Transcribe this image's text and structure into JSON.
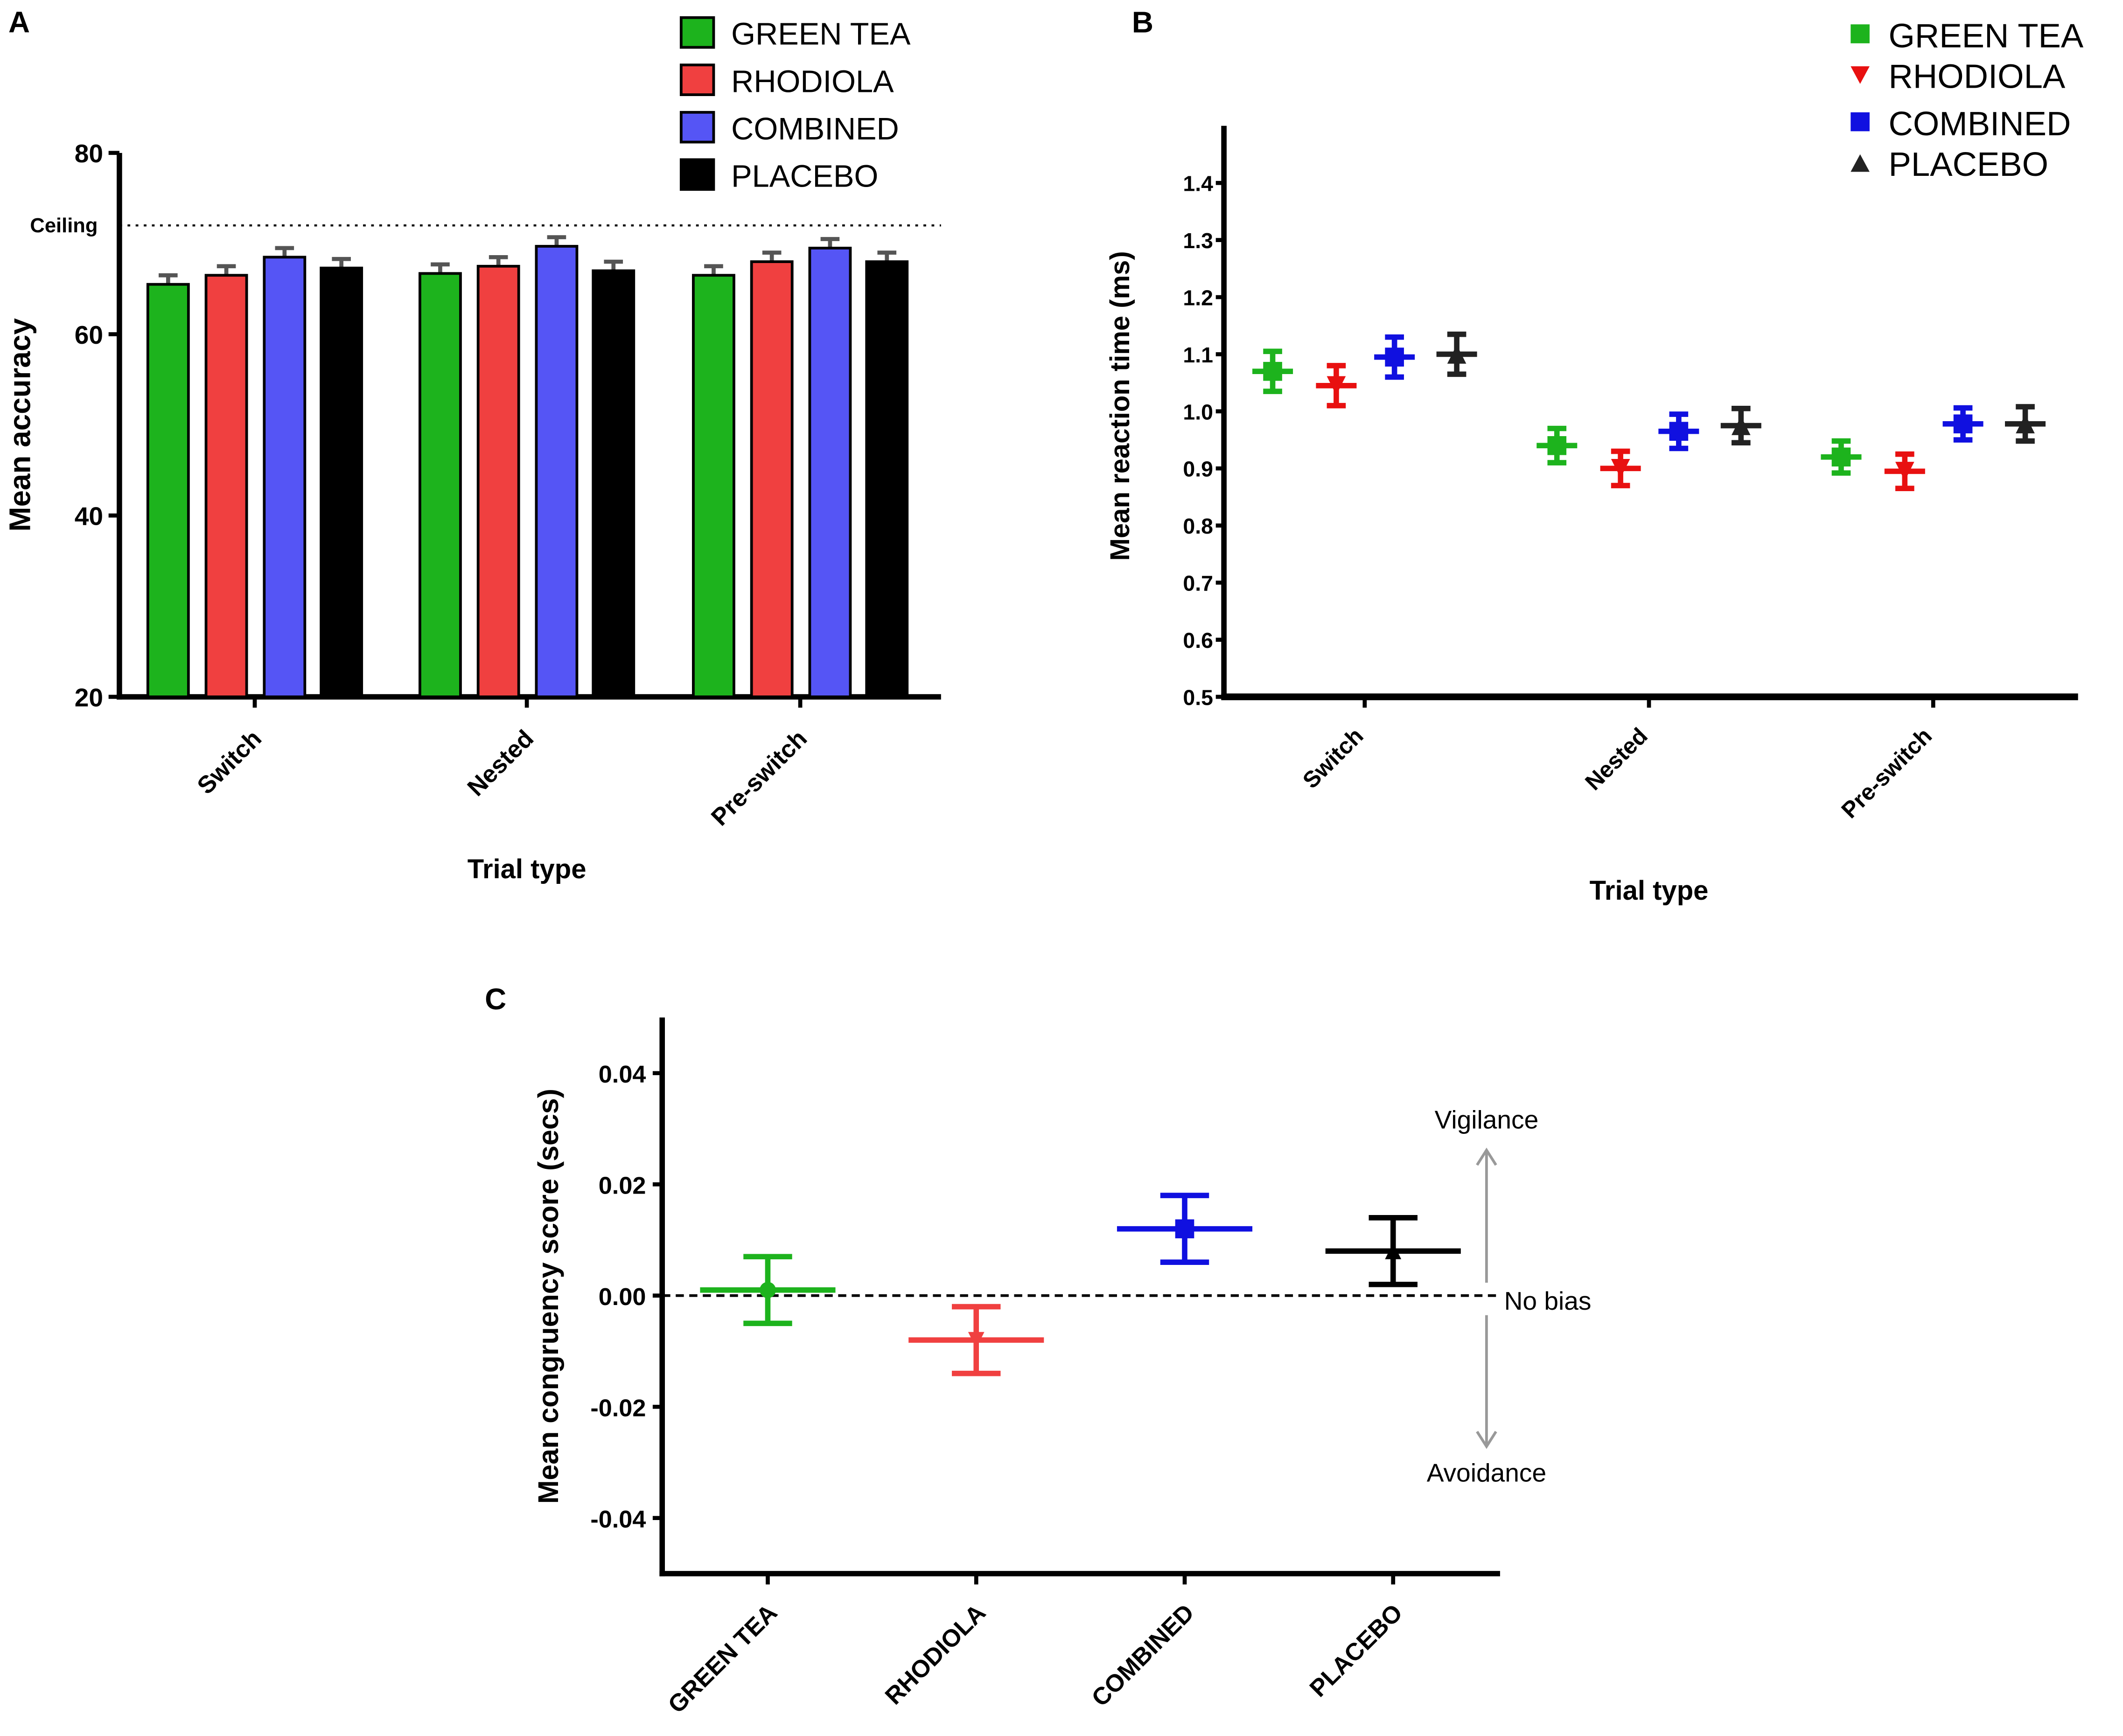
{
  "colors": {
    "green": "#1db31d",
    "red": "#f04040",
    "blue": "#5555f5",
    "black": "#000000",
    "red_b": "#e81010",
    "blue_b": "#1010e0",
    "black_b": "#222222"
  },
  "chart_data": [
    {
      "panel": "A",
      "type": "bar",
      "title": "",
      "xlabel": "Trial type",
      "ylabel": "Mean accuracy",
      "ylim": [
        20,
        80
      ],
      "yticks": [
        "20",
        "40",
        "60",
        "80"
      ],
      "categories": [
        "Switch",
        "Nested",
        "Pre-switch"
      ],
      "reference_line": {
        "label": "Ceiling",
        "value": 72
      },
      "legend": "top-right",
      "series": [
        {
          "name": "GREEN TEA",
          "color_key": "green",
          "values": [
            65.5,
            66.7,
            66.5
          ],
          "errors": [
            1.0,
            1.0,
            1.0
          ]
        },
        {
          "name": "RHODIOLA",
          "color_key": "red",
          "values": [
            66.5,
            67.5,
            68.0
          ],
          "errors": [
            1.0,
            1.0,
            1.0
          ]
        },
        {
          "name": "COMBINED",
          "color_key": "blue",
          "values": [
            68.5,
            69.7,
            69.5
          ],
          "errors": [
            1.0,
            1.0,
            1.0
          ]
        },
        {
          "name": "PLACEBO",
          "color_key": "black",
          "values": [
            67.3,
            67.0,
            68.0
          ],
          "errors": [
            1.0,
            1.0,
            1.0
          ]
        }
      ]
    },
    {
      "panel": "B",
      "type": "scatter",
      "xlabel": "Trial type",
      "ylabel": "Mean reaction time (ms)",
      "ylim": [
        0.5,
        1.5
      ],
      "yticks": [
        "0.5",
        "0.6",
        "0.7",
        "0.8",
        "0.9",
        "1.0",
        "1.1",
        "1.2",
        "1.3",
        "1.4"
      ],
      "categories": [
        "Switch",
        "Nested",
        "Pre-switch"
      ],
      "legend": "top-right",
      "series": [
        {
          "name": "GREEN TEA",
          "marker": "square",
          "color_key": "green",
          "values": [
            1.07,
            0.94,
            0.92
          ],
          "errors": [
            0.035,
            0.03,
            0.028
          ]
        },
        {
          "name": "RHODIOLA",
          "marker": "triangle-down",
          "color_key": "red_b",
          "values": [
            1.045,
            0.9,
            0.895
          ],
          "errors": [
            0.035,
            0.03,
            0.03
          ]
        },
        {
          "name": "COMBINED",
          "marker": "square",
          "color_key": "blue_b",
          "values": [
            1.095,
            0.965,
            0.978
          ],
          "errors": [
            0.035,
            0.03,
            0.028
          ]
        },
        {
          "name": "PLACEBO",
          "marker": "triangle-up",
          "color_key": "black_b",
          "values": [
            1.1,
            0.975,
            0.978
          ],
          "errors": [
            0.035,
            0.03,
            0.03
          ]
        }
      ]
    },
    {
      "panel": "C",
      "type": "scatter",
      "xlabel": "",
      "ylabel": "Mean congruency score (secs)",
      "ylim": [
        -0.05,
        0.05
      ],
      "yticks": [
        "-0.04",
        "-0.02",
        "0.00",
        "0.02",
        "0.04"
      ],
      "categories": [
        "GREEN TEA",
        "RHODIOLA",
        "COMBINED",
        "PLACEBO"
      ],
      "color_keys": [
        "green",
        "red",
        "blue_b",
        "black"
      ],
      "values": [
        0.001,
        -0.008,
        0.012,
        0.008
      ],
      "errors": [
        0.006,
        0.006,
        0.006,
        0.006
      ],
      "reference_line": {
        "label": "No bias",
        "value": 0
      },
      "annotations": {
        "up": "Vigilance",
        "down": "Avoidance"
      }
    }
  ]
}
